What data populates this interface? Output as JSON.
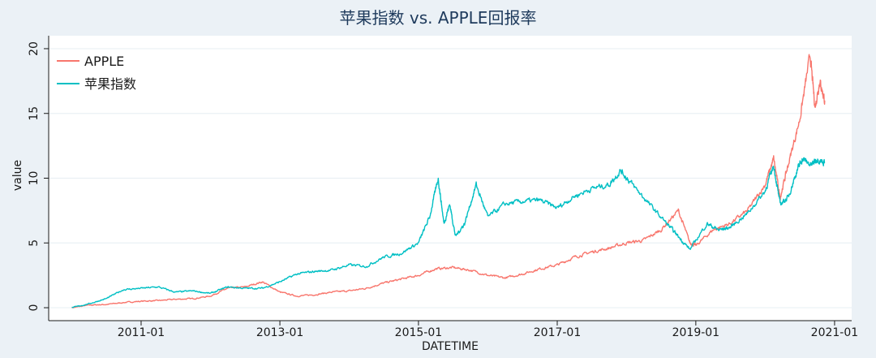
{
  "chart_data": {
    "type": "line",
    "title": "苹果指数 vs. APPLE回报率",
    "xlabel": "DATETIME",
    "ylabel": "value",
    "xlim": [
      "2009-09-01",
      "2021-04-01"
    ],
    "ylim": [
      -1,
      21
    ],
    "x_ticks": [
      "2011-01",
      "2013-01",
      "2015-01",
      "2017-01",
      "2019-01",
      "2021-01"
    ],
    "y_ticks": [
      0,
      5,
      10,
      15,
      20
    ],
    "grid": true,
    "legend": "top-left",
    "colors": {
      "APPLE": "#f8766d",
      "苹果指数": "#00bfc4"
    },
    "series": [
      {
        "name": "APPLE",
        "points": [
          [
            "2010-01-01",
            0.0
          ],
          [
            "2010-04-01",
            0.2
          ],
          [
            "2010-07-01",
            0.25
          ],
          [
            "2010-10-01",
            0.4
          ],
          [
            "2011-01-01",
            0.5
          ],
          [
            "2011-04-01",
            0.55
          ],
          [
            "2011-07-01",
            0.65
          ],
          [
            "2011-10-01",
            0.7
          ],
          [
            "2012-01-01",
            0.9
          ],
          [
            "2012-04-01",
            1.5
          ],
          [
            "2012-07-01",
            1.6
          ],
          [
            "2012-10-01",
            2.0
          ],
          [
            "2013-01-01",
            1.2
          ],
          [
            "2013-04-01",
            0.9
          ],
          [
            "2013-07-01",
            1.0
          ],
          [
            "2013-10-01",
            1.2
          ],
          [
            "2014-01-01",
            1.3
          ],
          [
            "2014-04-01",
            1.5
          ],
          [
            "2014-07-01",
            1.9
          ],
          [
            "2014-10-01",
            2.2
          ],
          [
            "2015-01-01",
            2.5
          ],
          [
            "2015-04-01",
            3.0
          ],
          [
            "2015-07-01",
            3.1
          ],
          [
            "2015-10-01",
            2.9
          ],
          [
            "2016-01-01",
            2.5
          ],
          [
            "2016-04-01",
            2.3
          ],
          [
            "2016-07-01",
            2.6
          ],
          [
            "2016-10-01",
            3.0
          ],
          [
            "2017-01-01",
            3.3
          ],
          [
            "2017-04-01",
            3.9
          ],
          [
            "2017-07-01",
            4.3
          ],
          [
            "2017-10-01",
            4.6
          ],
          [
            "2018-01-01",
            5.0
          ],
          [
            "2018-04-01",
            5.2
          ],
          [
            "2018-07-01",
            6.0
          ],
          [
            "2018-10-01",
            7.5
          ],
          [
            "2018-12-01",
            5.0
          ],
          [
            "2019-01-01",
            4.8
          ],
          [
            "2019-04-01",
            6.0
          ],
          [
            "2019-07-01",
            6.5
          ],
          [
            "2019-10-01",
            7.5
          ],
          [
            "2020-01-01",
            9.5
          ],
          [
            "2020-02-15",
            11.5
          ],
          [
            "2020-03-20",
            8.5
          ],
          [
            "2020-05-01",
            11.0
          ],
          [
            "2020-07-01",
            14.5
          ],
          [
            "2020-08-25",
            19.5
          ],
          [
            "2020-09-20",
            15.5
          ],
          [
            "2020-10-15",
            17.5
          ],
          [
            "2020-11-10",
            16.0
          ]
        ]
      },
      {
        "name": "苹果指数",
        "points": [
          [
            "2010-01-01",
            0.0
          ],
          [
            "2010-04-01",
            0.3
          ],
          [
            "2010-07-01",
            0.7
          ],
          [
            "2010-10-01",
            1.4
          ],
          [
            "2011-01-01",
            1.5
          ],
          [
            "2011-04-01",
            1.6
          ],
          [
            "2011-07-01",
            1.2
          ],
          [
            "2011-10-01",
            1.3
          ],
          [
            "2012-01-01",
            1.1
          ],
          [
            "2012-04-01",
            1.6
          ],
          [
            "2012-07-01",
            1.5
          ],
          [
            "2012-10-01",
            1.5
          ],
          [
            "2013-01-01",
            2.0
          ],
          [
            "2013-04-01",
            2.6
          ],
          [
            "2013-07-01",
            2.8
          ],
          [
            "2013-10-01",
            2.9
          ],
          [
            "2014-01-01",
            3.3
          ],
          [
            "2014-04-01",
            3.2
          ],
          [
            "2014-07-01",
            3.9
          ],
          [
            "2014-10-01",
            4.2
          ],
          [
            "2015-01-01",
            5.0
          ],
          [
            "2015-03-01",
            7.0
          ],
          [
            "2015-04-15",
            10.0
          ],
          [
            "2015-05-15",
            6.5
          ],
          [
            "2015-06-15",
            8.0
          ],
          [
            "2015-07-15",
            5.5
          ],
          [
            "2015-09-01",
            6.5
          ],
          [
            "2015-11-01",
            9.5
          ],
          [
            "2016-01-01",
            7.0
          ],
          [
            "2016-04-01",
            8.0
          ],
          [
            "2016-07-01",
            8.2
          ],
          [
            "2016-10-01",
            8.3
          ],
          [
            "2017-01-01",
            7.7
          ],
          [
            "2017-04-01",
            8.6
          ],
          [
            "2017-07-01",
            9.2
          ],
          [
            "2017-10-01",
            9.5
          ],
          [
            "2017-12-01",
            10.6
          ],
          [
            "2018-02-01",
            9.5
          ],
          [
            "2018-05-01",
            8.0
          ],
          [
            "2018-08-01",
            6.5
          ],
          [
            "2018-10-01",
            5.5
          ],
          [
            "2018-12-01",
            4.5
          ],
          [
            "2019-03-01",
            6.5
          ],
          [
            "2019-05-01",
            6.0
          ],
          [
            "2019-07-01",
            6.2
          ],
          [
            "2019-10-01",
            7.3
          ],
          [
            "2020-01-01",
            9.0
          ],
          [
            "2020-02-15",
            11.0
          ],
          [
            "2020-03-20",
            8.0
          ],
          [
            "2020-05-01",
            8.5
          ],
          [
            "2020-06-15",
            10.5
          ],
          [
            "2020-07-15",
            11.5
          ],
          [
            "2020-09-01",
            11.0
          ],
          [
            "2020-10-01",
            11.5
          ],
          [
            "2020-11-10",
            11.2
          ]
        ]
      }
    ]
  }
}
